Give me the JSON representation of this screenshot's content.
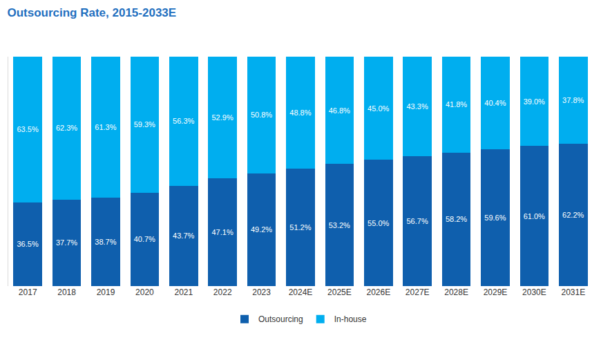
{
  "chart_data": {
    "type": "bar",
    "title": "Outsourcing Rate, 2015-2033E",
    "categories": [
      "2017",
      "2018",
      "2019",
      "2020",
      "2021",
      "2022",
      "2023",
      "2024E",
      "2025E",
      "2026E",
      "2027E",
      "2028E",
      "2029E",
      "2030E",
      "2031E"
    ],
    "series": [
      {
        "name": "Outsourcing",
        "color": "#0f5fad",
        "values": [
          36.5,
          37.7,
          38.7,
          40.7,
          43.7,
          47.1,
          49.2,
          51.2,
          53.2,
          55.0,
          56.7,
          58.2,
          59.6,
          61.0,
          62.2
        ],
        "value_labels": [
          "36.5%",
          "37.7%",
          "38.7%",
          "40.7%",
          "43.7%",
          "47.1%",
          "49.2%",
          "51.2%",
          "53.2%",
          "55.0%",
          "56.7%",
          "58.2%",
          "59.6%",
          "61.0%",
          "62.2%"
        ]
      },
      {
        "name": "In-house",
        "color": "#00aeef",
        "values": [
          63.5,
          62.3,
          61.3,
          59.3,
          56.3,
          52.9,
          50.8,
          48.8,
          46.8,
          45.0,
          43.3,
          41.8,
          40.4,
          39.0,
          37.8
        ],
        "value_labels": [
          "63.5%",
          "62.3%",
          "61.3%",
          "59.3%",
          "56.3%",
          "52.9%",
          "50.8%",
          "48.8%",
          "46.8%",
          "45.0%",
          "43.3%",
          "41.8%",
          "40.4%",
          "39.0%",
          "37.8%"
        ]
      }
    ],
    "stacked": true,
    "data_labels": true,
    "ylim": [
      0,
      100
    ],
    "tick_labels": "x",
    "grid": false,
    "legend": "bottom"
  }
}
